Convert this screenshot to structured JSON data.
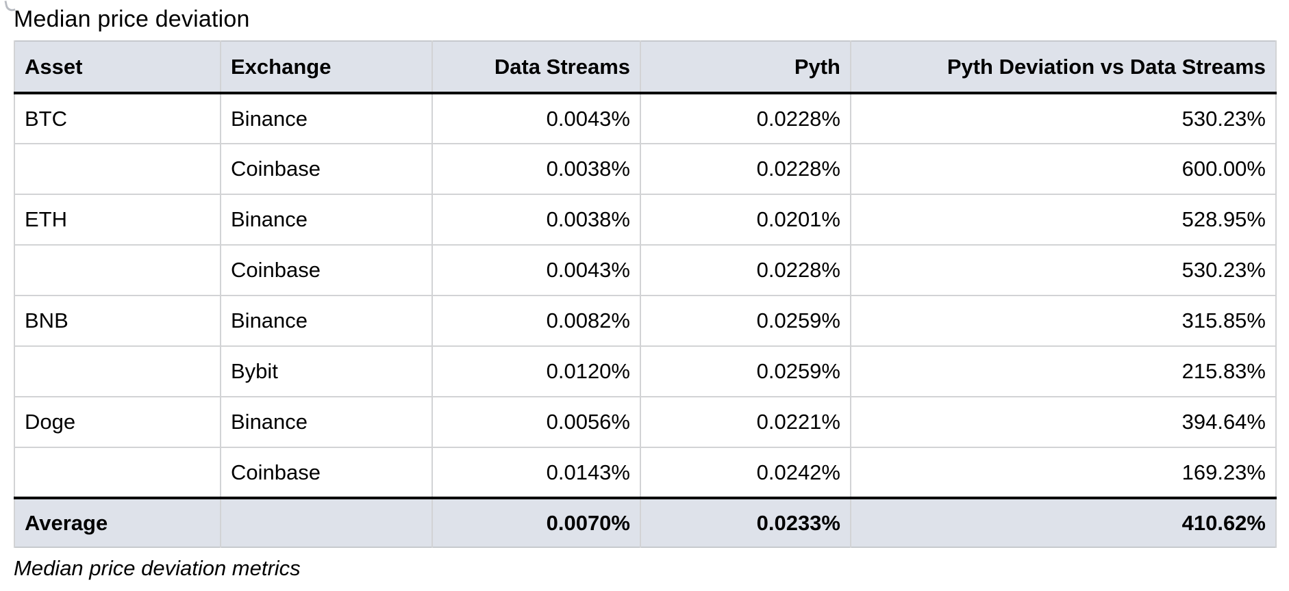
{
  "page": {
    "title": "Median price deviation",
    "caption": "Median price deviation metrics"
  },
  "table": {
    "columns": [
      {
        "label": "Asset",
        "align": "left"
      },
      {
        "label": "Exchange",
        "align": "left"
      },
      {
        "label": "Data Streams",
        "align": "right"
      },
      {
        "label": "Pyth",
        "align": "right"
      },
      {
        "label": "Pyth Deviation vs Data Streams",
        "align": "right"
      }
    ],
    "rows": [
      {
        "asset": "BTC",
        "exchange": "Binance",
        "data_streams": "0.0043%",
        "pyth": "0.0228%",
        "pyth_deviation_vs_data_streams": "530.23%"
      },
      {
        "asset": "",
        "exchange": "Coinbase",
        "data_streams": "0.0038%",
        "pyth": "0.0228%",
        "pyth_deviation_vs_data_streams": "600.00%"
      },
      {
        "asset": "ETH",
        "exchange": "Binance",
        "data_streams": "0.0038%",
        "pyth": "0.0201%",
        "pyth_deviation_vs_data_streams": "528.95%"
      },
      {
        "asset": "",
        "exchange": "Coinbase",
        "data_streams": "0.0043%",
        "pyth": "0.0228%",
        "pyth_deviation_vs_data_streams": "530.23%"
      },
      {
        "asset": "BNB",
        "exchange": "Binance",
        "data_streams": "0.0082%",
        "pyth": "0.0259%",
        "pyth_deviation_vs_data_streams": "315.85%"
      },
      {
        "asset": "",
        "exchange": "Bybit",
        "data_streams": "0.0120%",
        "pyth": "0.0259%",
        "pyth_deviation_vs_data_streams": "215.83%"
      },
      {
        "asset": "Doge",
        "exchange": "Binance",
        "data_streams": "0.0056%",
        "pyth": "0.0221%",
        "pyth_deviation_vs_data_streams": "394.64%"
      },
      {
        "asset": "",
        "exchange": "Coinbase",
        "data_streams": "0.0143%",
        "pyth": "0.0242%",
        "pyth_deviation_vs_data_streams": "169.23%"
      }
    ],
    "footer": {
      "asset": "Average",
      "exchange": "",
      "data_streams": "0.0070%",
      "pyth": "0.0233%",
      "pyth_deviation_vs_data_streams": "410.62%"
    }
  },
  "colors": {
    "header_bg": "#dee2ea",
    "grid_line": "#d2d3d5",
    "outer_border": "#c6c9cd",
    "strong_rule": "#000000",
    "text": "#000000",
    "page_bg": "#ffffff"
  }
}
